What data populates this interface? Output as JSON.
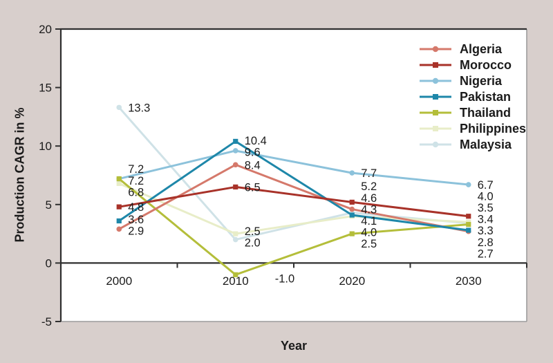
{
  "colors": {
    "background": "#d8cfcc",
    "plot_background": "#ffffff",
    "axis": "#2f2f2f",
    "border": "#9c9c9c",
    "text": "#1b1b1b"
  },
  "chart_data": {
    "type": "line",
    "title": "",
    "xlabel": "Year",
    "ylabel": "Production CAGR in %",
    "x": [
      "2000",
      "2010",
      "2020",
      "2030"
    ],
    "ylim": [
      -5,
      20
    ],
    "yticks": [
      20,
      15,
      10,
      5,
      0,
      -5
    ],
    "grid": false,
    "legend_position": "top-right",
    "point_labels_shown": true,
    "series": [
      {
        "name": "Algeria",
        "color": "#d5796b",
        "marker": "circle",
        "values": [
          2.9,
          8.4,
          4.6,
          2.7
        ]
      },
      {
        "name": "Morocco",
        "color": "#a83229",
        "marker": "square",
        "values": [
          4.8,
          6.5,
          5.2,
          4.0
        ]
      },
      {
        "name": "Nigeria",
        "color": "#8cc2db",
        "marker": "circle",
        "values": [
          7.2,
          9.6,
          7.7,
          6.7
        ]
      },
      {
        "name": "Pakistan",
        "color": "#1e87a9",
        "marker": "square",
        "values": [
          3.6,
          10.4,
          4.1,
          2.8
        ]
      },
      {
        "name": "Thailand",
        "color": "#b4be3a",
        "marker": "square",
        "values": [
          7.2,
          -1.0,
          2.5,
          3.3
        ]
      },
      {
        "name": "Philippines",
        "color": "#e8edc8",
        "marker": "square",
        "values": [
          6.8,
          2.5,
          4.0,
          3.5
        ]
      },
      {
        "name": "Malaysia",
        "color": "#cfe2e7",
        "marker": "circle",
        "values": [
          13.3,
          2.0,
          4.3,
          3.4
        ]
      }
    ]
  }
}
